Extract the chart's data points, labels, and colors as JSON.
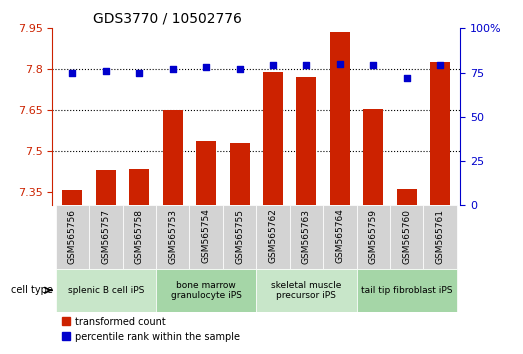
{
  "title": "GDS3770 / 10502776",
  "samples": [
    "GSM565756",
    "GSM565757",
    "GSM565758",
    "GSM565753",
    "GSM565754",
    "GSM565755",
    "GSM565762",
    "GSM565763",
    "GSM565764",
    "GSM565759",
    "GSM565760",
    "GSM565761"
  ],
  "transformed_count": [
    7.355,
    7.43,
    7.435,
    7.65,
    7.535,
    7.53,
    7.79,
    7.77,
    7.935,
    7.655,
    7.36,
    7.825
  ],
  "percentile_rank": [
    75,
    76,
    75,
    77,
    78,
    77,
    79,
    79,
    80,
    79,
    72,
    79
  ],
  "cell_types": [
    {
      "label": "splenic B cell iPS",
      "start": 0,
      "end": 3,
      "color": "#c8e6c9"
    },
    {
      "label": "bone marrow\ngranulocyte iPS",
      "start": 3,
      "end": 6,
      "color": "#a5d6a7"
    },
    {
      "label": "skeletal muscle\nprecursor iPS",
      "start": 6,
      "end": 9,
      "color": "#c8e6c9"
    },
    {
      "label": "tail tip fibroblast iPS",
      "start": 9,
      "end": 12,
      "color": "#a5d6a7"
    }
  ],
  "ylim_left": [
    7.3,
    7.95
  ],
  "ylim_right": [
    0,
    100
  ],
  "bar_color": "#cc2200",
  "dot_color": "#0000cc",
  "grid_color": "#000000",
  "yticks_left": [
    7.35,
    7.5,
    7.65,
    7.8,
    7.95
  ],
  "yticks_right": [
    0,
    25,
    50,
    75,
    100
  ],
  "ytick_labels_right": [
    "0",
    "25",
    "50",
    "75",
    "100%"
  ],
  "background_plot": "#ffffff",
  "background_xtick": "#d3d3d3"
}
